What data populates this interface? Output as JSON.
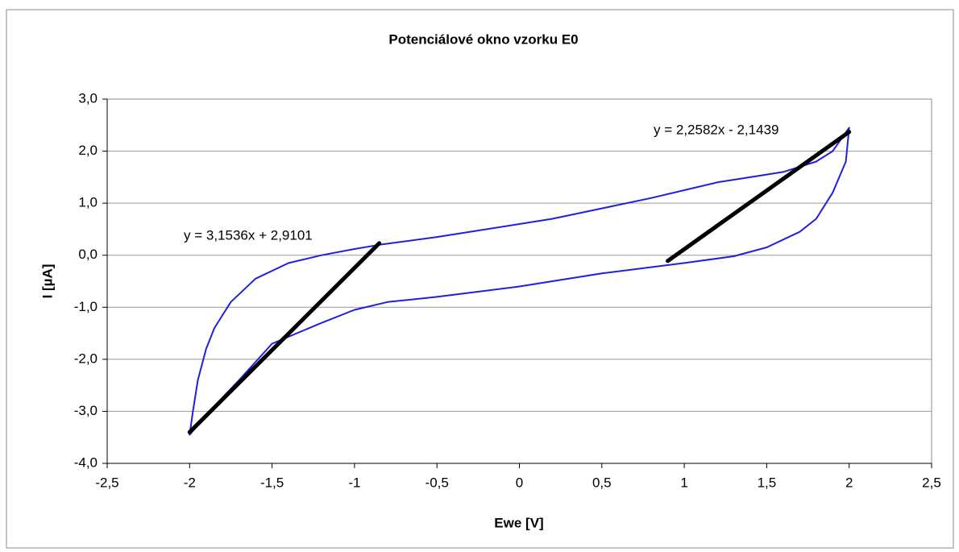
{
  "chart_data": {
    "type": "line",
    "title": "Potenciálové okno vzorku E0",
    "x_label": "Ewe [V]",
    "y_label": "I [µA]",
    "annotations": [
      "y = 3,1536x + 2,9101",
      "y = 2,2582x - 2,1439"
    ],
    "xlim": [
      -2.5,
      2.5
    ],
    "xticks": [
      {
        "value": -2.5,
        "label": "-2,5"
      },
      -2,
      {
        "value": -1.5,
        "label": "-1,5"
      },
      -1,
      {
        "value": -0.5,
        "label": "-0,5"
      },
      0,
      {
        "value": 0.5,
        "label": "0,5"
      },
      1,
      {
        "value": 1.5,
        "label": "1,5"
      },
      2,
      {
        "value": 2.5,
        "label": "2,5"
      }
    ],
    "ylim": [
      -4,
      3
    ],
    "yticks": [
      {
        "value": -4,
        "label": "-4,0"
      },
      {
        "value": -3,
        "label": "-3,0"
      },
      {
        "value": -2,
        "label": "-2,0"
      },
      {
        "value": -1,
        "label": "-1,0"
      },
      {
        "value": 0,
        "label": "0,0"
      },
      {
        "value": 1,
        "label": "1,0"
      },
      {
        "value": 2,
        "label": "2,0"
      },
      {
        "value": 3,
        "label": "3,0"
      }
    ],
    "grid": true,
    "series": [
      {
        "color": "#1f1fdf",
        "x": [
          -2,
          -1.98,
          -1.95,
          -1.9,
          -1.85,
          -1.75,
          -1.6,
          -1.4,
          -1.2,
          -1,
          -0.85,
          -0.5,
          0,
          0.2,
          0.5,
          0.8,
          1,
          1.2,
          1.4,
          1.6,
          1.8,
          1.9,
          2,
          1.98,
          1.9,
          1.8,
          1.7,
          1.5,
          1.3,
          1,
          0.5,
          0,
          -0.5,
          -0.8,
          -1,
          -1.2,
          -1.5,
          -1.7,
          -1.85,
          -2
        ],
        "values": [
          -3.45,
          -3,
          -2.4,
          -1.8,
          -1.4,
          -0.9,
          -0.45,
          -0.15,
          0,
          0.12,
          0.2,
          0.35,
          0.6,
          0.7,
          0.9,
          1.1,
          1.25,
          1.4,
          1.5,
          1.6,
          1.8,
          2,
          2.45,
          1.8,
          1.2,
          0.7,
          0.45,
          0.15,
          -0.02,
          -0.15,
          -0.35,
          -0.6,
          -0.8,
          -0.9,
          -1.05,
          -1.3,
          -1.7,
          -2.4,
          -2.9,
          -3.45
        ]
      },
      {
        "color": "#000000",
        "x": [
          -2,
          -0.85
        ],
        "values": [
          -3.4,
          0.23
        ]
      },
      {
        "color": "#000000",
        "x": [
          0.9,
          2
        ],
        "values": [
          -0.11,
          2.37
        ]
      }
    ]
  }
}
